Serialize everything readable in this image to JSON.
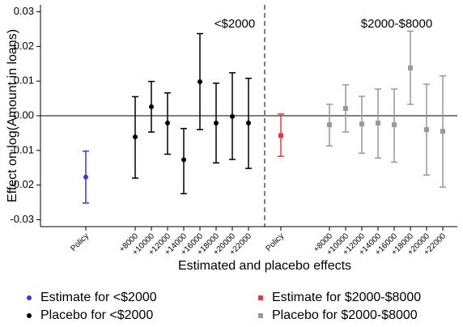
{
  "chart_data": {
    "type": "errorbar",
    "y_label": "Effect on log(Amount in loans)",
    "x_label": "Estimated and placebo effects",
    "annotations": [
      "<$2000",
      "$2000-$8000"
    ],
    "categories": [
      "Policy",
      "+8000",
      "+10000",
      "+12000",
      "+14000",
      "+16000",
      "+18000",
      "+20000",
      "+22000",
      "Policy",
      "+8000",
      "+10000",
      "+12000",
      "+14000",
      "+16000",
      "+18000",
      "+20000",
      "+22000"
    ],
    "ylim": [
      -0.032,
      0.032
    ],
    "yticks": [
      0.03,
      0.02,
      0.01,
      {
        "value": 0,
        "label": "0.00"
      },
      -0.01,
      -0.02,
      -0.03
    ],
    "series": [
      {
        "name": "Estimate for <$2000",
        "color": "#3636e0",
        "marker": "circle",
        "values": [
          -0.0177,
          null,
          null,
          null,
          null,
          null,
          null,
          null,
          null,
          null,
          null,
          null,
          null,
          null,
          null,
          null,
          null,
          null
        ],
        "ci_low": [
          -0.0252,
          null,
          null,
          null,
          null,
          null,
          null,
          null,
          null,
          null,
          null,
          null,
          null,
          null,
          null,
          null,
          null,
          null
        ],
        "ci_high": [
          -0.0102,
          null,
          null,
          null,
          null,
          null,
          null,
          null,
          null,
          null,
          null,
          null,
          null,
          null,
          null,
          null,
          null,
          null
        ]
      },
      {
        "name": "Placebo for <$2000",
        "color": "#000000",
        "marker": "circle",
        "values": [
          null,
          -0.0061,
          0.0026,
          -0.0021,
          -0.0127,
          0.0098,
          -0.0021,
          -0.0002,
          -0.0021,
          null,
          null,
          null,
          null,
          null,
          null,
          null,
          null,
          null
        ],
        "ci_low": [
          null,
          -0.018,
          -0.0047,
          -0.0111,
          -0.0225,
          -0.004,
          -0.0136,
          -0.0126,
          -0.0152,
          null,
          null,
          null,
          null,
          null,
          null,
          null,
          null,
          null
        ],
        "ci_high": [
          null,
          0.0055,
          0.0099,
          0.0066,
          -0.0037,
          0.0237,
          0.0094,
          0.0124,
          0.0108,
          null,
          null,
          null,
          null,
          null,
          null,
          null,
          null,
          null
        ]
      },
      {
        "name": "Estimate for $2000-$8000",
        "color": "#e8383d",
        "marker": "square",
        "values": [
          null,
          null,
          null,
          null,
          null,
          null,
          null,
          null,
          null,
          -0.0057,
          null,
          null,
          null,
          null,
          null,
          null,
          null,
          null
        ],
        "ci_low": [
          null,
          null,
          null,
          null,
          null,
          null,
          null,
          null,
          null,
          -0.0117,
          null,
          null,
          null,
          null,
          null,
          null,
          null,
          null
        ],
        "ci_high": [
          null,
          null,
          null,
          null,
          null,
          null,
          null,
          null,
          null,
          0.0005,
          null,
          null,
          null,
          null,
          null,
          null,
          null,
          null
        ]
      },
      {
        "name": "Placebo for $2000-$8000",
        "color": "#999999",
        "marker": "square",
        "values": [
          null,
          null,
          null,
          null,
          null,
          null,
          null,
          null,
          null,
          null,
          -0.0026,
          0.0021,
          -0.0024,
          -0.0021,
          -0.0026,
          0.0138,
          -0.004,
          -0.0045
        ],
        "ci_low": [
          null,
          null,
          null,
          null,
          null,
          null,
          null,
          null,
          null,
          null,
          -0.0087,
          -0.0047,
          -0.0108,
          -0.0122,
          -0.0134,
          0.0033,
          -0.0171,
          -0.0206
        ],
        "ci_high": [
          null,
          null,
          null,
          null,
          null,
          null,
          null,
          null,
          null,
          null,
          0.0033,
          0.0089,
          0.0056,
          0.0077,
          0.0077,
          0.0244,
          0.0091,
          0.0115
        ]
      }
    ]
  }
}
